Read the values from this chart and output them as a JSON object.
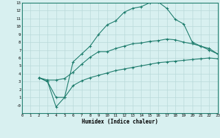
{
  "line1_x": [
    2,
    3,
    4,
    5,
    6,
    7,
    8,
    9,
    10,
    11,
    12,
    13,
    14,
    15,
    16,
    17,
    18,
    19,
    20,
    21,
    22,
    23
  ],
  "line1_y": [
    3.5,
    3.0,
    1.0,
    1.0,
    5.5,
    6.5,
    7.5,
    9.0,
    10.2,
    10.7,
    11.8,
    12.3,
    12.5,
    13.0,
    13.1,
    12.3,
    10.9,
    10.3,
    8.0,
    7.5,
    7.0,
    6.5
  ],
  "line2_x": [
    2,
    3,
    4,
    5,
    6,
    7,
    8,
    9,
    10,
    11,
    12,
    13,
    14,
    15,
    16,
    17,
    18,
    19,
    20,
    21,
    22,
    23
  ],
  "line2_y": [
    3.5,
    3.2,
    3.2,
    3.4,
    4.2,
    5.2,
    6.1,
    6.8,
    6.8,
    7.2,
    7.5,
    7.8,
    7.9,
    8.1,
    8.2,
    8.4,
    8.3,
    8.0,
    7.8,
    7.5,
    7.2,
    6.5
  ],
  "line3_x": [
    2,
    3,
    4,
    5,
    6,
    7,
    8,
    9,
    10,
    11,
    12,
    13,
    14,
    15,
    16,
    17,
    18,
    19,
    20,
    21,
    22,
    23
  ],
  "line3_y": [
    3.5,
    3.0,
    -0.2,
    1.0,
    2.5,
    3.1,
    3.5,
    3.8,
    4.1,
    4.4,
    4.6,
    4.8,
    5.0,
    5.2,
    5.4,
    5.5,
    5.6,
    5.7,
    5.8,
    5.9,
    6.0,
    5.9
  ],
  "line_color": "#1a7a6a",
  "bg_color": "#d8f0f0",
  "grid_color": "#b8d8d8",
  "xlabel": "Humidex (Indice chaleur)",
  "xlim": [
    0,
    23
  ],
  "ylim": [
    -1,
    13
  ],
  "xticks": [
    0,
    1,
    2,
    3,
    4,
    5,
    6,
    7,
    8,
    9,
    10,
    11,
    12,
    13,
    14,
    15,
    16,
    17,
    18,
    19,
    20,
    21,
    22,
    23
  ],
  "yticks": [
    0,
    1,
    2,
    3,
    4,
    5,
    6,
    7,
    8,
    9,
    10,
    11,
    12,
    13
  ],
  "ytick_labels": [
    "-0",
    "1",
    "2",
    "3",
    "4",
    "5",
    "6",
    "7",
    "8",
    "9",
    "10",
    "11",
    "12",
    "13"
  ],
  "marker": "+"
}
